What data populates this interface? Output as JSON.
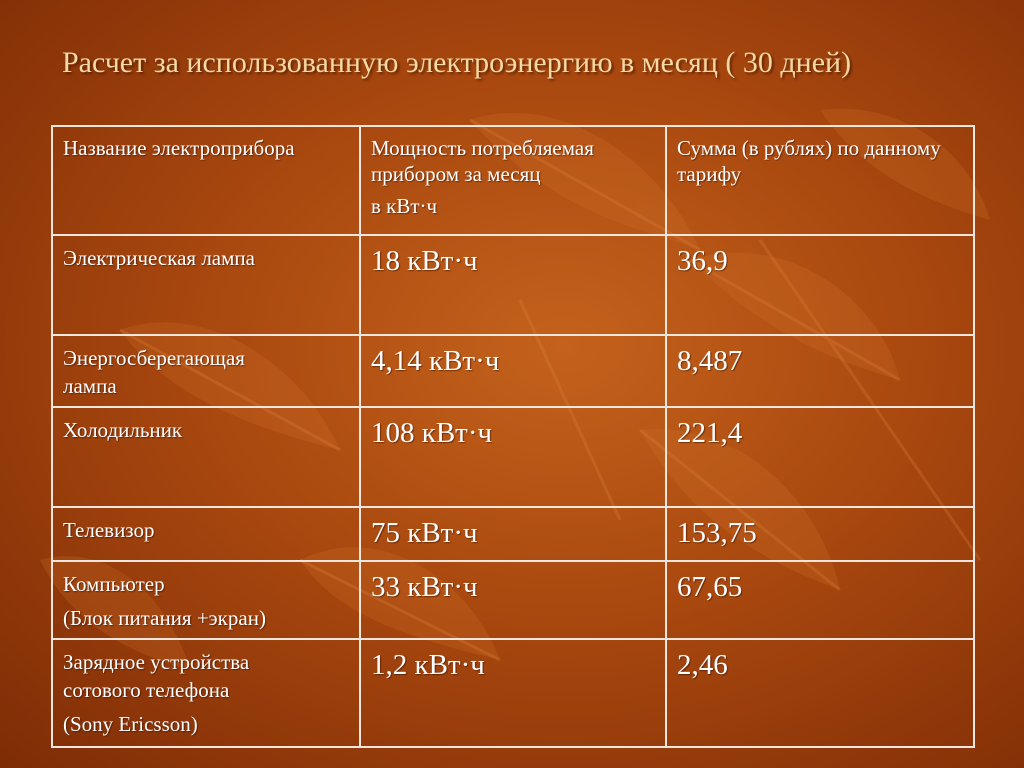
{
  "title": "Расчет за использованную электроэнергию в месяц ( 30 дней)",
  "table": {
    "headers": {
      "name": "Название электроприбора",
      "power_line1": "Мощность потребляемая прибором за месяц",
      "power_unit": "в кВт·ч",
      "sum": "Сумма (в рублях) по данному тарифу"
    },
    "rows": [
      {
        "name": "Электрическая лампа",
        "name2": "",
        "name3": "",
        "power": "18 кВт·ч",
        "sum": "36,9"
      },
      {
        "name": "Энергосберегающая",
        "name2": "лампа",
        "name3": "",
        "power": "4,14 кВт·ч",
        "sum": "8,487"
      },
      {
        "name": "Холодильник",
        "name2": "",
        "name3": "",
        "power": "108 кВт·ч",
        "sum": "221,4"
      },
      {
        "name": "Телевизор",
        "name2": "",
        "name3": "",
        "power": "75 кВт·ч",
        "sum": "153,75"
      },
      {
        "name": "Компьютер",
        "name2": "",
        "name3": "(Блок питания +экран)",
        "power": "33 кВт·ч",
        "sum": "67,65"
      },
      {
        "name": "Зарядное устройства",
        "name2": "сотового телефона",
        "name3": "(Sony Ericsson)",
        "power": "1,2 кВт·ч",
        "sum": "2,46"
      }
    ]
  },
  "colors": {
    "background": "#a9480f",
    "title": "#f7d9a3",
    "table_text": "#ffffff",
    "border": "#efe6df"
  }
}
